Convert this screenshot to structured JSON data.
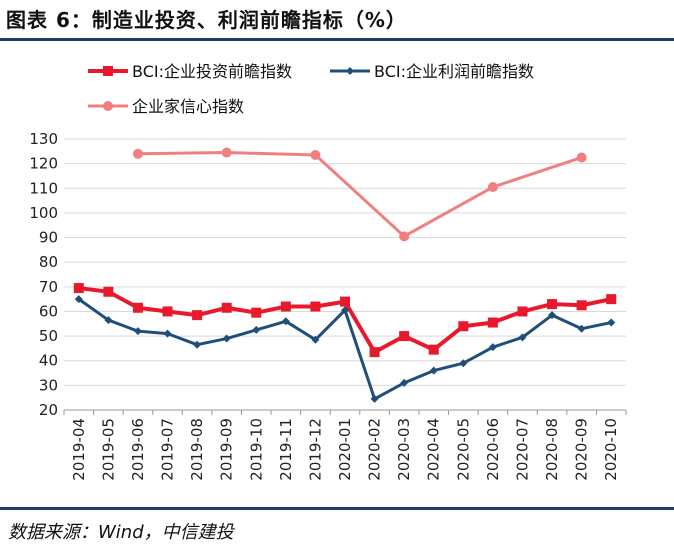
{
  "figure": {
    "title": "图表 6：制造业投资、利润前瞻指标（%）",
    "source": "数据来源：Wind，中信建投"
  },
  "chart_data": {
    "type": "line",
    "categories": [
      "2019-04",
      "2019-05",
      "2019-06",
      "2019-07",
      "2019-08",
      "2019-09",
      "2019-10",
      "2019-11",
      "2019-12",
      "2020-01",
      "2020-02",
      "2020-03",
      "2020-04",
      "2020-05",
      "2020-06",
      "2020-07",
      "2020-08",
      "2020-09",
      "2020-10"
    ],
    "ylim": [
      20,
      130
    ],
    "yticks": [
      20,
      30,
      40,
      50,
      60,
      70,
      80,
      90,
      100,
      110,
      120,
      130
    ],
    "grid": true,
    "legend_position": "top-left",
    "series": [
      {
        "name": "BCI:企业投资前瞻指数",
        "color": "#e8192c",
        "marker": "square",
        "values": [
          69.5,
          68,
          61.5,
          60,
          58.5,
          61.5,
          59.5,
          62,
          62,
          64,
          43.5,
          50,
          44.5,
          54,
          55.5,
          60,
          63,
          62.5,
          65
        ]
      },
      {
        "name": "BCI:企业利润前瞻指数",
        "color": "#1f4e79",
        "marker": "diamond",
        "values": [
          65,
          56.5,
          52,
          51,
          46.5,
          49,
          52.5,
          56,
          48.5,
          60.5,
          24.5,
          31,
          36,
          39,
          45.5,
          49.5,
          58.5,
          53,
          55.5
        ]
      },
      {
        "name": "企业家信心指数",
        "color": "#f08080",
        "marker": "circle",
        "values": [
          null,
          null,
          124,
          null,
          null,
          124.5,
          null,
          null,
          123.5,
          null,
          null,
          90.5,
          null,
          null,
          110.5,
          null,
          null,
          122.5,
          null
        ]
      }
    ]
  }
}
